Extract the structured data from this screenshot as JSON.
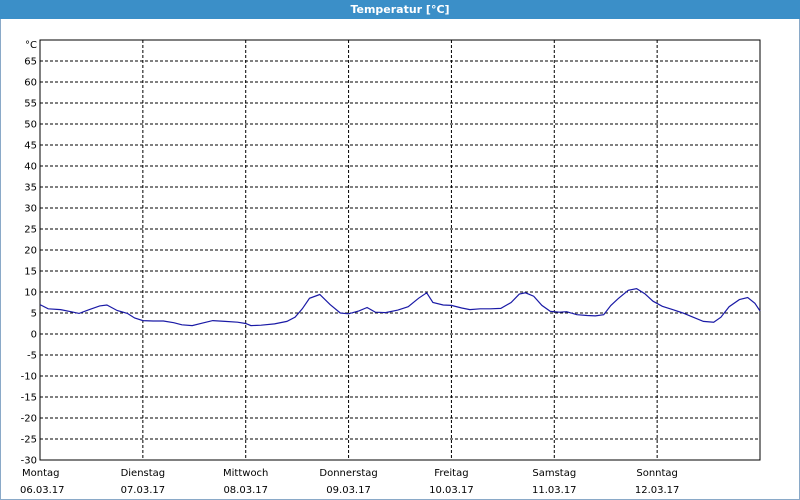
{
  "window": {
    "title": "Temperatur [°C]"
  },
  "colors": {
    "title_bar": "#3b8fc8",
    "series": "#1a1aa6",
    "grid": "#000000"
  },
  "chart_data": {
    "type": "line",
    "title": "Temperatur [°C]",
    "ylabel": "°C",
    "xlabel": "",
    "ylim": [
      -30,
      70
    ],
    "yticks": [
      65,
      60,
      55,
      50,
      45,
      40,
      35,
      30,
      25,
      20,
      15,
      10,
      5,
      0,
      -5,
      -10,
      -15,
      -20,
      -25,
      -30
    ],
    "xlim": [
      0,
      7
    ],
    "grid": true,
    "days": [
      {
        "weekday": "Montag",
        "date": "06.03.17"
      },
      {
        "weekday": "Dienstag",
        "date": "07.03.17"
      },
      {
        "weekday": "Mittwoch",
        "date": "08.03.17"
      },
      {
        "weekday": "Donnerstag",
        "date": "09.03.17"
      },
      {
        "weekday": "Freitag",
        "date": "10.03.17"
      },
      {
        "weekday": "Samstag",
        "date": "11.03.17"
      },
      {
        "weekday": "Sonntag",
        "date": "12.03.17"
      }
    ],
    "series": [
      {
        "points": [
          [
            0.0,
            7.0
          ],
          [
            0.08,
            6.0
          ],
          [
            0.2,
            5.8
          ],
          [
            0.3,
            5.3
          ],
          [
            0.38,
            4.9
          ],
          [
            0.48,
            5.8
          ],
          [
            0.58,
            6.7
          ],
          [
            0.65,
            6.9
          ],
          [
            0.75,
            5.6
          ],
          [
            0.85,
            4.9
          ],
          [
            0.92,
            3.8
          ],
          [
            1.0,
            3.2
          ],
          [
            1.1,
            3.1
          ],
          [
            1.2,
            3.1
          ],
          [
            1.3,
            2.7
          ],
          [
            1.38,
            2.2
          ],
          [
            1.48,
            2.0
          ],
          [
            1.58,
            2.6
          ],
          [
            1.68,
            3.2
          ],
          [
            1.8,
            3.0
          ],
          [
            1.92,
            2.8
          ],
          [
            2.0,
            2.5
          ],
          [
            2.05,
            2.0
          ],
          [
            2.15,
            2.1
          ],
          [
            2.28,
            2.4
          ],
          [
            2.4,
            3.0
          ],
          [
            2.48,
            4.0
          ],
          [
            2.55,
            6.0
          ],
          [
            2.62,
            8.5
          ],
          [
            2.72,
            9.4
          ],
          [
            2.82,
            7.0
          ],
          [
            2.92,
            5.0
          ],
          [
            3.0,
            4.8
          ],
          [
            3.1,
            5.5
          ],
          [
            3.18,
            6.3
          ],
          [
            3.26,
            5.2
          ],
          [
            3.36,
            5.1
          ],
          [
            3.48,
            5.7
          ],
          [
            3.58,
            6.5
          ],
          [
            3.68,
            8.5
          ],
          [
            3.76,
            9.8
          ],
          [
            3.82,
            7.5
          ],
          [
            3.92,
            6.9
          ],
          [
            4.0,
            6.8
          ],
          [
            4.1,
            6.2
          ],
          [
            4.18,
            5.8
          ],
          [
            4.28,
            6.0
          ],
          [
            4.38,
            6.0
          ],
          [
            4.48,
            6.1
          ],
          [
            4.58,
            7.5
          ],
          [
            4.66,
            9.5
          ],
          [
            4.72,
            9.8
          ],
          [
            4.8,
            9.0
          ],
          [
            4.88,
            6.8
          ],
          [
            4.96,
            5.4
          ],
          [
            5.05,
            5.2
          ],
          [
            5.12,
            5.3
          ],
          [
            5.22,
            4.6
          ],
          [
            5.32,
            4.4
          ],
          [
            5.4,
            4.3
          ],
          [
            5.48,
            4.6
          ],
          [
            5.55,
            6.8
          ],
          [
            5.62,
            8.4
          ],
          [
            5.72,
            10.4
          ],
          [
            5.8,
            10.8
          ],
          [
            5.88,
            9.6
          ],
          [
            5.96,
            7.8
          ],
          [
            6.05,
            6.6
          ],
          [
            6.15,
            5.8
          ],
          [
            6.25,
            5.0
          ],
          [
            6.35,
            4.0
          ],
          [
            6.45,
            3.0
          ],
          [
            6.55,
            2.8
          ],
          [
            6.62,
            4.0
          ],
          [
            6.7,
            6.5
          ],
          [
            6.8,
            8.2
          ],
          [
            6.88,
            8.7
          ],
          [
            6.95,
            7.3
          ],
          [
            7.0,
            5.5
          ]
        ]
      }
    ]
  }
}
